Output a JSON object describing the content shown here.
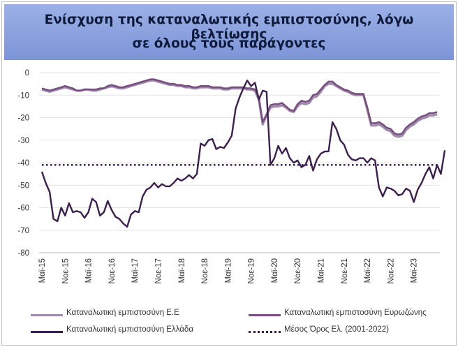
{
  "title": {
    "line1": "Ενίσχυση της καταναλωτικής εμπιστοσύνης, λόγω βελτίωσης",
    "line2": "σε όλους τους παράγοντες"
  },
  "colors": {
    "eu": "#9f89ad",
    "ez": "#77507f",
    "gr": "#3d1f4f",
    "avg": "#3d1f4f",
    "title_bg": "#8aa0de"
  },
  "chart_data": {
    "type": "line",
    "title": "Ενίσχυση της καταναλωτικής εμπιστοσύνης, λόγω βελτίωσης σε όλους τους παράγοντες",
    "ylim": [
      -80,
      0
    ],
    "yticks": [
      0,
      -10,
      -20,
      -30,
      -40,
      -50,
      -60,
      -70,
      -80
    ],
    "x_start": "2015-05",
    "x_tick_labels": [
      "Μαϊ-15",
      "Νοε-15",
      "Μαϊ-16",
      "Νοε-16",
      "Μαϊ-17",
      "Νοε-17",
      "Μαϊ-18",
      "Νοε-18",
      "Μαϊ-19",
      "Νοε-19",
      "Μαϊ-20",
      "Νοε-20",
      "Μαϊ-21",
      "Νοε-21",
      "Μαϊ-22",
      "Νοε-22",
      "Μαϊ-23"
    ],
    "grid": "horizontal",
    "legend_position": "bottom",
    "series": [
      {
        "name": "Καταναλωτική εμπιστοσύνη Ε.Ε",
        "values": [
          -7.5,
          -8,
          -8.5,
          -8,
          -7.5,
          -7,
          -6.5,
          -7,
          -7.5,
          -8,
          -8,
          -7.5,
          -7.5,
          -8,
          -8,
          -7.5,
          -7,
          -6.5,
          -6,
          -6.5,
          -7,
          -7,
          -6.5,
          -6,
          -5.5,
          -5,
          -4.5,
          -4,
          -3.5,
          -3.5,
          -4,
          -4.5,
          -5,
          -5.5,
          -5.5,
          -6,
          -6,
          -6.5,
          -6.5,
          -7,
          -7,
          -6.5,
          -6.5,
          -6.5,
          -7,
          -7,
          -7,
          -7.5,
          -7.5,
          -7,
          -7,
          -7,
          -7,
          -7.5,
          -7.5,
          -8,
          -12,
          -23,
          -19,
          -15.5,
          -15,
          -15,
          -14.5,
          -15.5,
          -17,
          -17.5,
          -15,
          -13.5,
          -14,
          -13.5,
          -11,
          -10.5,
          -8.5,
          -6,
          -5,
          -5,
          -6,
          -7,
          -8,
          -8.5,
          -9.5,
          -10,
          -10,
          -10,
          -16.5,
          -23.5,
          -23.5,
          -23,
          -24,
          -25.5,
          -26,
          -28,
          -28.5,
          -28,
          -25.5,
          -24,
          -23,
          -21.5,
          -20.5,
          -20,
          -19,
          -19,
          -18.5
        ],
        "color": "#9f89ad"
      },
      {
        "name": "Καταναλωτική εμπιστοσύνη Ευρωζώνης",
        "values": [
          -7,
          -7.5,
          -8,
          -7.5,
          -7,
          -6.5,
          -6,
          -6.5,
          -7,
          -8,
          -8,
          -7.5,
          -7.5,
          -7.5,
          -7.5,
          -7,
          -7,
          -6,
          -5.5,
          -6,
          -6.5,
          -6.5,
          -6,
          -5.5,
          -5,
          -4.5,
          -4,
          -3.5,
          -3,
          -3,
          -3.5,
          -4,
          -4.5,
          -5,
          -5,
          -5.5,
          -5.5,
          -6,
          -6,
          -6.5,
          -6.5,
          -6,
          -6,
          -6,
          -6.5,
          -6.5,
          -6.5,
          -7,
          -7,
          -6.5,
          -6.5,
          -6.5,
          -6.5,
          -7,
          -7,
          -7.5,
          -11,
          -22,
          -18.5,
          -14.5,
          -14,
          -14,
          -13.5,
          -15,
          -16.5,
          -17,
          -14,
          -12.5,
          -13,
          -12.5,
          -10,
          -9.5,
          -7.5,
          -5.5,
          -4,
          -4,
          -5.5,
          -6.5,
          -7.5,
          -8,
          -9,
          -9.5,
          -9.5,
          -9.5,
          -15.5,
          -22.5,
          -22.5,
          -22,
          -23,
          -24.5,
          -25,
          -27,
          -27.5,
          -27,
          -24.5,
          -23,
          -22,
          -20.5,
          -19.5,
          -19,
          -18,
          -18,
          -17.5
        ],
        "color": "#77507f"
      },
      {
        "name": "Καταναλωτική εμπιστοσύνη Ελλάδα",
        "values": [
          -44,
          -49,
          -53,
          -65,
          -66,
          -60,
          -63.5,
          -58,
          -62,
          -61.5,
          -62,
          -64.5,
          -62,
          -56,
          -57.5,
          -63.5,
          -62,
          -57,
          -61,
          -64,
          -65,
          -67,
          -68.5,
          -63,
          -61.5,
          -62,
          -55,
          -52,
          -51,
          -49,
          -51,
          -49.5,
          -50.5,
          -50.5,
          -49,
          -47,
          -48,
          -47,
          -45.5,
          -47,
          -45,
          -31.5,
          -32.5,
          -30,
          -29.5,
          -34,
          -33,
          -33.5,
          -31,
          -28,
          -16,
          -11,
          -7,
          -3.5,
          -6,
          -4.5,
          -12,
          -8,
          -8.5,
          -41,
          -38,
          -32.5,
          -36,
          -33.5,
          -38,
          -40,
          -39,
          -42,
          -41,
          -37,
          -43.5,
          -38.5,
          -36,
          -35,
          -35,
          -22,
          -25,
          -30,
          -32,
          -36.5,
          -38.5,
          -39,
          -38,
          -38,
          -40,
          -38,
          -39,
          -51,
          -55,
          -51,
          -51.5,
          -52.5,
          -54.5,
          -54,
          -51.5,
          -52.5,
          -57.5,
          -52,
          -49,
          -45,
          -42,
          -47,
          -41,
          -45,
          -34.5
        ],
        "color": "#3d1f4f"
      },
      {
        "name": "Μέσος Όρος Ελ. (2001-2022)",
        "values_constant": -41,
        "style": "dotted",
        "color": "#3d1f4f"
      }
    ]
  }
}
